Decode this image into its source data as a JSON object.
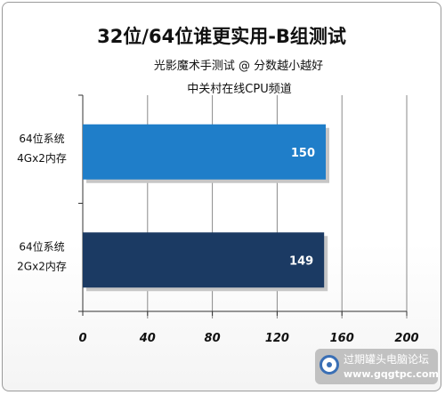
{
  "chart_data": {
    "type": "bar",
    "orientation": "horizontal",
    "title": "32位/64位谁更实用-B组测试",
    "subtitles": [
      "光影魔术手测试 @ 分数越小越好",
      "中关村在线CPU频道"
    ],
    "categories": [
      [
        "64位系统",
        "4Gx2内存"
      ],
      [
        "64位系统",
        "2Gx2内存"
      ]
    ],
    "values": [
      150,
      149
    ],
    "bar_colors": [
      "#1f7ec9",
      "#1b3a63"
    ],
    "xlim": [
      0,
      200
    ],
    "xticks": [
      "0",
      "40",
      "80",
      "120",
      "160",
      "200"
    ],
    "grid": true
  },
  "watermark": {
    "text": "过期罐头电脑论坛",
    "url": "www.gqgtpc.com"
  }
}
